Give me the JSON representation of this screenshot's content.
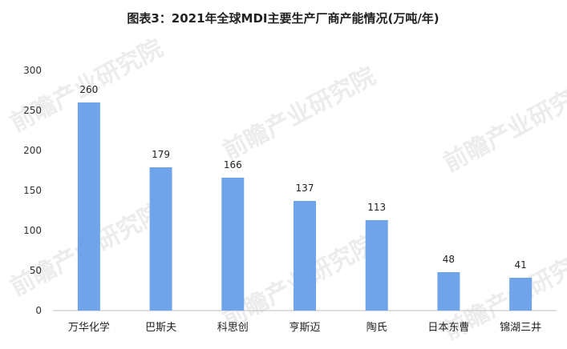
{
  "chart_data": {
    "type": "bar",
    "title": "图表3：2021年全球MDI主要生产厂商产能情况(万吨/年)",
    "categories": [
      "万华化学",
      "巴斯夫",
      "科思创",
      "亨斯迈",
      "陶氏",
      "日本东曹",
      "锦湖三井"
    ],
    "values": [
      260,
      179,
      166,
      137,
      113,
      48,
      41
    ],
    "ylim": [
      0,
      300
    ],
    "yticks": [
      0,
      50,
      100,
      150,
      200,
      250,
      300
    ],
    "grid": false,
    "legend": "none",
    "bar_color": "#6fa3ea"
  },
  "watermark": "前瞻产业研究院"
}
